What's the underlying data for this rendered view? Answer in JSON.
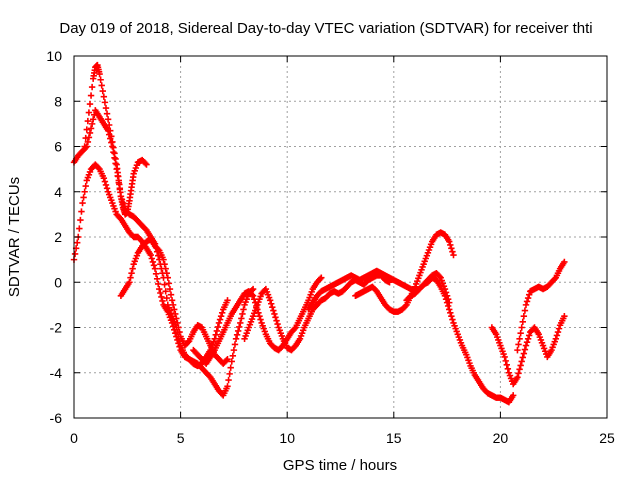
{
  "chart_data": {
    "type": "scatter",
    "title": "Day 019 of 2018, Sidereal Day-to-day VTEC variation (SDTVAR) for receiver thti",
    "xlabel": "GPS time / hours",
    "ylabel": "SDTVAR / TECUs",
    "xlim": [
      0,
      25
    ],
    "ylim": [
      -6,
      10
    ],
    "xticks": [
      "0",
      "5",
      "10",
      "15",
      "20",
      "25"
    ],
    "yticks": [
      "-6",
      "-4",
      "-2",
      "0",
      "2",
      "4",
      "6",
      "8",
      "10"
    ],
    "grid": true,
    "marker": "+",
    "series_color": "#ff0000",
    "series": [
      {
        "points": [
          [
            0.0,
            5.3
          ],
          [
            0.2,
            5.6
          ],
          [
            0.4,
            5.8
          ],
          [
            0.6,
            6.0
          ],
          [
            0.8,
            6.8
          ],
          [
            1.0,
            7.6
          ],
          [
            1.2,
            7.3
          ],
          [
            1.4,
            7.0
          ],
          [
            1.6,
            6.7
          ],
          [
            1.8,
            6.0
          ],
          [
            2.0,
            5.0
          ],
          [
            2.2,
            3.8
          ],
          [
            2.4,
            3.2
          ],
          [
            2.6,
            3.0
          ],
          [
            2.8,
            2.9
          ],
          [
            3.0,
            2.7
          ],
          [
            3.2,
            2.5
          ],
          [
            3.4,
            2.3
          ],
          [
            3.6,
            2.0
          ],
          [
            3.8,
            1.7
          ],
          [
            4.0,
            1.0
          ],
          [
            4.2,
            0.2
          ],
          [
            4.4,
            -1.0
          ],
          [
            4.6,
            -1.5
          ],
          [
            4.8,
            -2.0
          ],
          [
            5.0,
            -2.8
          ],
          [
            5.2,
            -3.2
          ],
          [
            5.4,
            -3.4
          ],
          [
            5.6,
            -3.6
          ],
          [
            5.8,
            -3.7
          ],
          [
            6.0,
            -3.6
          ],
          [
            6.2,
            -3.3
          ],
          [
            6.4,
            -3.0
          ],
          [
            6.6,
            -2.5
          ],
          [
            6.8,
            -1.8
          ],
          [
            7.0,
            -1.2
          ],
          [
            7.2,
            -0.8
          ]
        ]
      },
      {
        "points": [
          [
            0.0,
            1.0
          ],
          [
            0.2,
            2.0
          ],
          [
            0.4,
            3.5
          ],
          [
            0.6,
            4.5
          ],
          [
            0.8,
            5.0
          ],
          [
            1.0,
            5.2
          ],
          [
            1.2,
            5.0
          ],
          [
            1.4,
            4.6
          ],
          [
            1.6,
            4.0
          ],
          [
            1.8,
            3.5
          ],
          [
            2.0,
            3.0
          ],
          [
            2.2,
            2.8
          ],
          [
            2.4,
            2.5
          ],
          [
            2.6,
            2.2
          ],
          [
            2.8,
            2.0
          ],
          [
            3.0,
            2.0
          ],
          [
            3.2,
            1.8
          ],
          [
            3.4,
            1.5
          ],
          [
            3.6,
            1.2
          ],
          [
            3.8,
            0.6
          ],
          [
            4.0,
            -0.3
          ],
          [
            4.2,
            -1.0
          ],
          [
            4.4,
            -1.3
          ],
          [
            4.6,
            -1.8
          ],
          [
            4.8,
            -2.4
          ],
          [
            5.0,
            -3.0
          ],
          [
            5.2,
            -3.3
          ],
          [
            5.4,
            -3.4
          ],
          [
            5.6,
            -3.5
          ],
          [
            5.8,
            -3.6
          ],
          [
            6.0,
            -3.8
          ],
          [
            6.2,
            -4.0
          ],
          [
            6.4,
            -4.2
          ],
          [
            6.6,
            -4.5
          ],
          [
            6.8,
            -4.8
          ],
          [
            7.0,
            -5.0
          ],
          [
            7.2,
            -4.6
          ],
          [
            7.4,
            -3.5
          ],
          [
            7.6,
            -2.5
          ],
          [
            7.8,
            -1.8
          ],
          [
            8.0,
            -1.0
          ],
          [
            8.2,
            -0.5
          ],
          [
            8.4,
            -0.3
          ]
        ]
      },
      {
        "points": [
          [
            0.5,
            6.0
          ],
          [
            0.7,
            7.5
          ],
          [
            0.9,
            9.0
          ],
          [
            1.0,
            9.5
          ],
          [
            1.1,
            9.6
          ],
          [
            1.2,
            9.2
          ],
          [
            1.4,
            8.2
          ],
          [
            1.6,
            7.2
          ],
          [
            1.8,
            6.2
          ],
          [
            2.0,
            5.2
          ],
          [
            2.1,
            4.5
          ],
          [
            2.2,
            3.8
          ],
          [
            2.3,
            3.3
          ],
          [
            2.4,
            3.0
          ],
          [
            2.5,
            3.1
          ],
          [
            2.6,
            3.6
          ],
          [
            2.7,
            4.2
          ],
          [
            2.8,
            4.8
          ],
          [
            3.0,
            5.3
          ],
          [
            3.2,
            5.4
          ],
          [
            3.4,
            5.2
          ]
        ]
      },
      {
        "points": [
          [
            2.2,
            -0.6
          ],
          [
            2.4,
            -0.3
          ],
          [
            2.6,
            0.0
          ],
          [
            2.8,
            0.8
          ],
          [
            3.0,
            1.3
          ],
          [
            3.2,
            1.6
          ],
          [
            3.4,
            1.8
          ],
          [
            3.6,
            1.9
          ],
          [
            3.8,
            1.6
          ],
          [
            4.0,
            1.4
          ],
          [
            4.2,
            1.0
          ],
          [
            4.4,
            0.2
          ],
          [
            4.6,
            -0.8
          ],
          [
            4.8,
            -1.6
          ],
          [
            5.0,
            -2.4
          ],
          [
            5.2,
            -2.8
          ],
          [
            5.4,
            -2.6
          ],
          [
            5.6,
            -2.2
          ],
          [
            5.8,
            -1.9
          ],
          [
            6.0,
            -2.0
          ],
          [
            6.2,
            -2.4
          ],
          [
            6.4,
            -2.8
          ],
          [
            6.6,
            -3.2
          ],
          [
            6.8,
            -3.4
          ],
          [
            7.0,
            -3.6
          ],
          [
            7.2,
            -3.4
          ]
        ]
      },
      {
        "points": [
          [
            5.6,
            -3.0
          ],
          [
            5.8,
            -3.2
          ],
          [
            6.0,
            -3.4
          ],
          [
            6.2,
            -3.6
          ],
          [
            6.4,
            -3.3
          ],
          [
            6.6,
            -3.0
          ],
          [
            6.8,
            -2.6
          ],
          [
            7.0,
            -2.2
          ],
          [
            7.2,
            -1.8
          ],
          [
            7.4,
            -1.4
          ],
          [
            7.6,
            -1.1
          ],
          [
            7.8,
            -0.8
          ],
          [
            8.0,
            -0.5
          ],
          [
            8.2,
            -0.4
          ],
          [
            8.4,
            -0.6
          ],
          [
            8.6,
            -1.2
          ],
          [
            8.8,
            -1.8
          ],
          [
            9.0,
            -2.3
          ],
          [
            9.2,
            -2.7
          ],
          [
            9.4,
            -2.9
          ],
          [
            9.6,
            -3.0
          ],
          [
            9.8,
            -2.8
          ],
          [
            10.0,
            -2.5
          ],
          [
            10.2,
            -2.2
          ],
          [
            10.4,
            -2.0
          ],
          [
            10.6,
            -1.6
          ],
          [
            10.8,
            -1.2
          ],
          [
            11.0,
            -0.8
          ],
          [
            11.2,
            -0.3
          ],
          [
            11.4,
            0.0
          ],
          [
            11.6,
            0.2
          ]
        ]
      },
      {
        "points": [
          [
            8.0,
            -2.5
          ],
          [
            8.2,
            -2.0
          ],
          [
            8.4,
            -1.5
          ],
          [
            8.6,
            -1.0
          ],
          [
            8.8,
            -0.5
          ],
          [
            9.0,
            -0.3
          ],
          [
            9.2,
            -0.8
          ],
          [
            9.4,
            -1.4
          ],
          [
            9.6,
            -2.0
          ],
          [
            9.8,
            -2.5
          ],
          [
            10.0,
            -2.9
          ],
          [
            10.2,
            -3.0
          ],
          [
            10.4,
            -2.8
          ],
          [
            10.6,
            -2.5
          ],
          [
            10.8,
            -2.0
          ],
          [
            11.0,
            -1.6
          ],
          [
            11.2,
            -1.2
          ],
          [
            11.4,
            -1.0
          ],
          [
            11.6,
            -0.8
          ],
          [
            11.8,
            -0.7
          ],
          [
            12.0,
            -0.5
          ],
          [
            12.2,
            -0.4
          ],
          [
            12.4,
            -0.5
          ],
          [
            12.6,
            -0.4
          ],
          [
            12.8,
            -0.2
          ],
          [
            13.0,
            0.0
          ],
          [
            13.2,
            0.1
          ],
          [
            13.4,
            0.0
          ],
          [
            13.6,
            -0.1
          ],
          [
            13.8,
            0.1
          ],
          [
            14.0,
            0.2
          ],
          [
            14.2,
            0.3
          ],
          [
            14.4,
            0.3
          ],
          [
            14.6,
            0.1
          ],
          [
            14.8,
            0.0
          ]
        ]
      },
      {
        "points": [
          [
            11.0,
            -1.2
          ],
          [
            11.2,
            -0.9
          ],
          [
            11.4,
            -0.6
          ],
          [
            11.6,
            -0.4
          ],
          [
            11.8,
            -0.3
          ],
          [
            12.0,
            -0.2
          ],
          [
            12.2,
            -0.1
          ],
          [
            12.4,
            0.0
          ],
          [
            12.6,
            0.1
          ],
          [
            12.8,
            0.2
          ],
          [
            13.0,
            0.3
          ],
          [
            13.2,
            0.2
          ],
          [
            13.4,
            0.1
          ],
          [
            13.6,
            0.2
          ],
          [
            13.8,
            0.3
          ],
          [
            14.0,
            0.4
          ],
          [
            14.2,
            0.5
          ],
          [
            14.4,
            0.4
          ],
          [
            14.6,
            0.3
          ],
          [
            14.8,
            0.2
          ],
          [
            15.0,
            0.1
          ],
          [
            15.2,
            0.0
          ],
          [
            15.4,
            -0.1
          ],
          [
            15.6,
            -0.2
          ],
          [
            15.8,
            -0.3
          ],
          [
            16.0,
            -0.4
          ],
          [
            16.2,
            -0.3
          ],
          [
            16.4,
            -0.1
          ],
          [
            16.6,
            0.1
          ],
          [
            16.8,
            0.3
          ],
          [
            17.0,
            0.4
          ],
          [
            17.2,
            0.2
          ],
          [
            17.4,
            -0.3
          ],
          [
            17.6,
            -0.9
          ]
        ]
      },
      {
        "points": [
          [
            13.2,
            -0.6
          ],
          [
            13.4,
            -0.5
          ],
          [
            13.6,
            -0.4
          ],
          [
            13.8,
            -0.3
          ],
          [
            14.0,
            -0.2
          ],
          [
            14.2,
            -0.4
          ],
          [
            14.4,
            -0.7
          ],
          [
            14.6,
            -1.0
          ],
          [
            14.8,
            -1.2
          ],
          [
            15.0,
            -1.3
          ],
          [
            15.2,
            -1.3
          ],
          [
            15.4,
            -1.2
          ],
          [
            15.6,
            -1.0
          ],
          [
            15.8,
            -0.6
          ],
          [
            16.0,
            -0.2
          ],
          [
            16.2,
            0.3
          ],
          [
            16.4,
            0.8
          ],
          [
            16.6,
            1.3
          ],
          [
            16.8,
            1.8
          ],
          [
            17.0,
            2.1
          ],
          [
            17.2,
            2.2
          ],
          [
            17.4,
            2.1
          ],
          [
            17.6,
            1.8
          ],
          [
            17.8,
            1.2
          ]
        ]
      },
      {
        "points": [
          [
            15.6,
            -0.8
          ],
          [
            15.8,
            -0.6
          ],
          [
            16.0,
            -0.5
          ],
          [
            16.2,
            -0.3
          ],
          [
            16.4,
            -0.1
          ],
          [
            16.6,
            0.0
          ],
          [
            16.8,
            0.2
          ],
          [
            17.0,
            0.1
          ],
          [
            17.2,
            -0.2
          ],
          [
            17.4,
            -0.6
          ],
          [
            17.6,
            -1.2
          ],
          [
            17.8,
            -1.8
          ],
          [
            18.0,
            -2.3
          ],
          [
            18.2,
            -2.8
          ],
          [
            18.4,
            -3.2
          ],
          [
            18.6,
            -3.7
          ],
          [
            18.8,
            -4.1
          ],
          [
            19.0,
            -4.4
          ],
          [
            19.2,
            -4.7
          ],
          [
            19.4,
            -4.9
          ],
          [
            19.6,
            -5.0
          ],
          [
            19.8,
            -5.1
          ],
          [
            20.0,
            -5.1
          ],
          [
            20.2,
            -5.2
          ],
          [
            20.4,
            -5.3
          ],
          [
            20.6,
            -5.0
          ]
        ]
      },
      {
        "points": [
          [
            19.6,
            -2.0
          ],
          [
            19.8,
            -2.3
          ],
          [
            20.0,
            -2.8
          ],
          [
            20.2,
            -3.3
          ],
          [
            20.4,
            -4.0
          ],
          [
            20.6,
            -4.5
          ],
          [
            20.8,
            -4.2
          ],
          [
            21.0,
            -3.5
          ],
          [
            21.2,
            -2.8
          ],
          [
            21.4,
            -2.2
          ],
          [
            21.6,
            -2.0
          ],
          [
            21.8,
            -2.3
          ],
          [
            22.0,
            -2.8
          ],
          [
            22.2,
            -3.3
          ],
          [
            22.4,
            -3.0
          ],
          [
            22.6,
            -2.5
          ],
          [
            22.8,
            -1.9
          ],
          [
            23.0,
            -1.5
          ]
        ]
      },
      {
        "points": [
          [
            20.8,
            -3.0
          ],
          [
            21.0,
            -2.0
          ],
          [
            21.2,
            -1.0
          ],
          [
            21.4,
            -0.4
          ],
          [
            21.6,
            -0.3
          ],
          [
            21.8,
            -0.2
          ],
          [
            22.0,
            -0.3
          ],
          [
            22.2,
            -0.2
          ],
          [
            22.4,
            0.0
          ],
          [
            22.6,
            0.2
          ],
          [
            22.8,
            0.6
          ],
          [
            23.0,
            0.9
          ]
        ]
      }
    ]
  }
}
